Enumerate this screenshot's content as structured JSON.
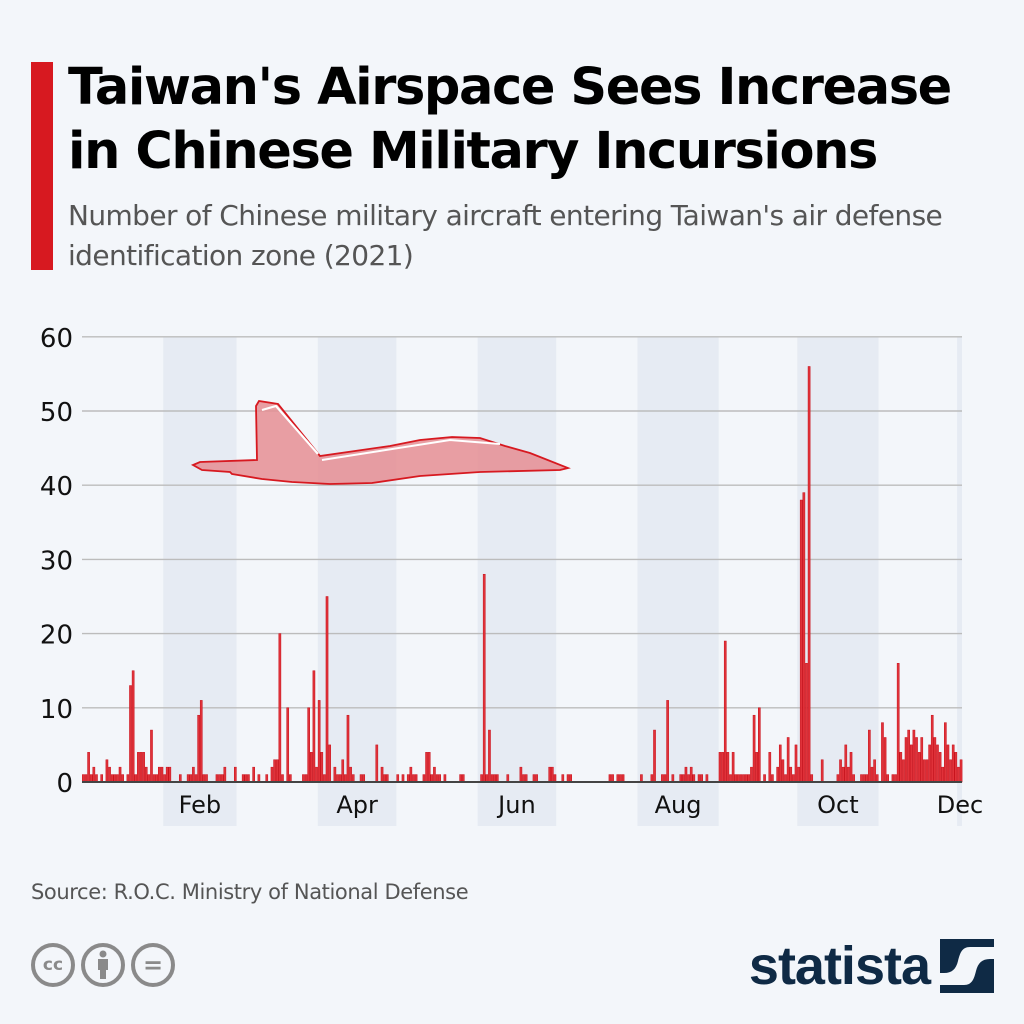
{
  "header": {
    "title": "Taiwan's Airspace Sees Increase in Chinese Military Incursions",
    "subtitle": "Number of Chinese military aircraft entering Taiwan's air defense identification zone (2021)"
  },
  "footer": {
    "source": "Source: R.O.C. Ministry of National Defense",
    "license_icons": [
      "cc-icon",
      "attribution-icon",
      "no-derivatives-icon"
    ],
    "cc_label": "cc",
    "eq_label": "=",
    "logo_text": "statista"
  },
  "colors": {
    "accent": "#d71920",
    "bar": "#e0323a",
    "logo": "#0f2a45",
    "shade": "#e6ebf3"
  },
  "chart_data": {
    "type": "bar",
    "title": "Taiwan's Airspace Sees Increase in Chinese Military Incursions",
    "xlabel": "",
    "ylabel": "",
    "ylim": [
      0,
      60
    ],
    "yticks": [
      0,
      10,
      20,
      30,
      40,
      50,
      60
    ],
    "grid": true,
    "x_unit": "day of year 2021",
    "month_ticks": [
      {
        "label": "Feb",
        "start_day": 31,
        "end_day": 59
      },
      {
        "label": "Apr",
        "start_day": 90,
        "end_day": 120
      },
      {
        "label": "Jun",
        "start_day": 151,
        "end_day": 181
      },
      {
        "label": "Aug",
        "start_day": 212,
        "end_day": 243
      },
      {
        "label": "Oct",
        "start_day": 273,
        "end_day": 304
      },
      {
        "label": "Dec",
        "start_day": 334,
        "end_day": 336
      }
    ],
    "days_shown": 336,
    "series": [
      {
        "name": "Aircraft entering ADIZ",
        "points": [
          [
            1,
            1
          ],
          [
            2,
            1
          ],
          [
            3,
            4
          ],
          [
            4,
            1
          ],
          [
            5,
            2
          ],
          [
            6,
            1
          ],
          [
            8,
            1
          ],
          [
            10,
            3
          ],
          [
            11,
            2
          ],
          [
            12,
            1
          ],
          [
            13,
            1
          ],
          [
            14,
            1
          ],
          [
            15,
            2
          ],
          [
            16,
            1
          ],
          [
            18,
            1
          ],
          [
            19,
            13
          ],
          [
            20,
            15
          ],
          [
            21,
            1
          ],
          [
            22,
            4
          ],
          [
            23,
            4
          ],
          [
            24,
            4
          ],
          [
            25,
            2
          ],
          [
            26,
            1
          ],
          [
            27,
            7
          ],
          [
            28,
            1
          ],
          [
            29,
            1
          ],
          [
            30,
            2
          ],
          [
            31,
            2
          ],
          [
            32,
            1
          ],
          [
            33,
            2
          ],
          [
            34,
            2
          ],
          [
            38,
            1
          ],
          [
            41,
            1
          ],
          [
            42,
            1
          ],
          [
            43,
            2
          ],
          [
            44,
            1
          ],
          [
            45,
            9
          ],
          [
            46,
            11
          ],
          [
            47,
            1
          ],
          [
            48,
            1
          ],
          [
            52,
            1
          ],
          [
            53,
            1
          ],
          [
            54,
            1
          ],
          [
            55,
            2
          ],
          [
            59,
            2
          ],
          [
            62,
            1
          ],
          [
            63,
            1
          ],
          [
            64,
            1
          ],
          [
            66,
            2
          ],
          [
            68,
            1
          ],
          [
            71,
            1
          ],
          [
            73,
            2
          ],
          [
            74,
            3
          ],
          [
            75,
            3
          ],
          [
            76,
            20
          ],
          [
            77,
            1
          ],
          [
            79,
            10
          ],
          [
            80,
            1
          ],
          [
            85,
            1
          ],
          [
            86,
            1
          ],
          [
            87,
            10
          ],
          [
            88,
            4
          ],
          [
            89,
            15
          ],
          [
            90,
            2
          ],
          [
            91,
            11
          ],
          [
            92,
            4
          ],
          [
            93,
            1
          ],
          [
            94,
            25
          ],
          [
            95,
            5
          ],
          [
            97,
            2
          ],
          [
            98,
            1
          ],
          [
            99,
            1
          ],
          [
            100,
            3
          ],
          [
            101,
            1
          ],
          [
            102,
            9
          ],
          [
            103,
            2
          ],
          [
            104,
            1
          ],
          [
            107,
            1
          ],
          [
            108,
            1
          ],
          [
            113,
            5
          ],
          [
            115,
            2
          ],
          [
            116,
            1
          ],
          [
            117,
            1
          ],
          [
            121,
            1
          ],
          [
            123,
            1
          ],
          [
            125,
            1
          ],
          [
            126,
            2
          ],
          [
            127,
            1
          ],
          [
            128,
            1
          ],
          [
            131,
            1
          ],
          [
            132,
            4
          ],
          [
            133,
            4
          ],
          [
            134,
            1
          ],
          [
            135,
            2
          ],
          [
            136,
            1
          ],
          [
            137,
            1
          ],
          [
            139,
            1
          ],
          [
            145,
            1
          ],
          [
            146,
            1
          ],
          [
            153,
            1
          ],
          [
            154,
            28
          ],
          [
            155,
            1
          ],
          [
            156,
            7
          ],
          [
            157,
            1
          ],
          [
            158,
            1
          ],
          [
            159,
            1
          ],
          [
            163,
            1
          ],
          [
            168,
            2
          ],
          [
            169,
            1
          ],
          [
            170,
            1
          ],
          [
            173,
            1
          ],
          [
            174,
            1
          ],
          [
            179,
            2
          ],
          [
            180,
            2
          ],
          [
            181,
            1
          ],
          [
            184,
            1
          ],
          [
            186,
            1
          ],
          [
            187,
            1
          ],
          [
            202,
            1
          ],
          [
            203,
            1
          ],
          [
            205,
            1
          ],
          [
            206,
            1
          ],
          [
            207,
            1
          ],
          [
            214,
            1
          ],
          [
            218,
            1
          ],
          [
            219,
            7
          ],
          [
            222,
            1
          ],
          [
            223,
            1
          ],
          [
            224,
            11
          ],
          [
            226,
            1
          ],
          [
            229,
            1
          ],
          [
            230,
            1
          ],
          [
            231,
            2
          ],
          [
            232,
            1
          ],
          [
            233,
            2
          ],
          [
            234,
            1
          ],
          [
            236,
            1
          ],
          [
            237,
            1
          ],
          [
            239,
            1
          ],
          [
            244,
            4
          ],
          [
            245,
            4
          ],
          [
            246,
            19
          ],
          [
            247,
            4
          ],
          [
            248,
            1
          ],
          [
            249,
            4
          ],
          [
            250,
            1
          ],
          [
            251,
            1
          ],
          [
            252,
            1
          ],
          [
            253,
            1
          ],
          [
            254,
            1
          ],
          [
            255,
            1
          ],
          [
            256,
            2
          ],
          [
            257,
            9
          ],
          [
            258,
            4
          ],
          [
            259,
            10
          ],
          [
            261,
            1
          ],
          [
            263,
            4
          ],
          [
            264,
            1
          ],
          [
            266,
            2
          ],
          [
            267,
            5
          ],
          [
            268,
            3
          ],
          [
            269,
            1
          ],
          [
            270,
            6
          ],
          [
            271,
            2
          ],
          [
            272,
            1
          ],
          [
            273,
            5
          ],
          [
            274,
            2
          ],
          [
            275,
            38
          ],
          [
            276,
            39
          ],
          [
            277,
            16
          ],
          [
            278,
            56
          ],
          [
            279,
            1
          ],
          [
            283,
            3
          ],
          [
            289,
            1
          ],
          [
            290,
            3
          ],
          [
            291,
            2
          ],
          [
            292,
            5
          ],
          [
            293,
            2
          ],
          [
            294,
            4
          ],
          [
            295,
            1
          ],
          [
            298,
            1
          ],
          [
            299,
            1
          ],
          [
            300,
            1
          ],
          [
            301,
            7
          ],
          [
            302,
            2
          ],
          [
            303,
            3
          ],
          [
            304,
            1
          ],
          [
            306,
            8
          ],
          [
            307,
            6
          ],
          [
            308,
            1
          ],
          [
            310,
            1
          ],
          [
            311,
            1
          ],
          [
            312,
            16
          ],
          [
            313,
            4
          ],
          [
            314,
            3
          ],
          [
            315,
            6
          ],
          [
            316,
            7
          ],
          [
            317,
            5
          ],
          [
            318,
            7
          ],
          [
            319,
            6
          ],
          [
            320,
            4
          ],
          [
            321,
            6
          ],
          [
            322,
            3
          ],
          [
            323,
            3
          ],
          [
            324,
            5
          ],
          [
            325,
            9
          ],
          [
            326,
            6
          ],
          [
            327,
            5
          ],
          [
            328,
            4
          ],
          [
            329,
            2
          ],
          [
            330,
            8
          ],
          [
            331,
            5
          ],
          [
            332,
            3
          ],
          [
            333,
            5
          ],
          [
            334,
            4
          ],
          [
            335,
            2
          ],
          [
            336,
            3
          ]
        ]
      }
    ],
    "decoration": "fighter-jet-silhouette"
  }
}
